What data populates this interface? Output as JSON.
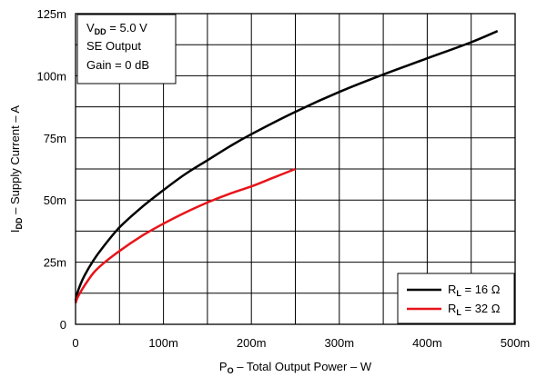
{
  "chart_data": {
    "type": "line",
    "xlabel": {
      "main": "P",
      "sub": "O",
      "rest": " – Total Output Power – W"
    },
    "ylabel": {
      "main": "I",
      "sub": "DD",
      "rest": " – Supply Current – A"
    },
    "xlim": [
      0,
      0.5
    ],
    "ylim": [
      0,
      0.125
    ],
    "x_ticks": [
      0,
      0.1,
      0.2,
      0.3,
      0.4,
      0.5
    ],
    "x_tick_labels": [
      "0",
      "100m",
      "200m",
      "300m",
      "400m",
      "500m"
    ],
    "y_ticks": [
      0,
      0.025,
      0.05,
      0.075,
      0.1,
      0.125
    ],
    "y_tick_labels": [
      "0",
      "25m",
      "50m",
      "75m",
      "100m",
      "125m"
    ],
    "grid": true,
    "grid_x_minor": [
      0.05,
      0.15,
      0.25,
      0.35,
      0.45
    ],
    "grid_y_minor": [
      0.0125,
      0.0375,
      0.0625,
      0.0875,
      0.1125
    ],
    "annotation": {
      "vdd": {
        "main": "V",
        "sub": "DD",
        "rest": " = 5.0 V"
      },
      "lines": [
        "SE Output",
        "Gain = 0 dB"
      ]
    },
    "legend_position": "bottom-right",
    "series": [
      {
        "name": {
          "main": "R",
          "sub": "L",
          "rest": " = 16 Ω"
        },
        "color": "#000000",
        "x": [
          0,
          0.002,
          0.005,
          0.01,
          0.02,
          0.03,
          0.05,
          0.075,
          0.1,
          0.125,
          0.15,
          0.175,
          0.2,
          0.25,
          0.3,
          0.35,
          0.4,
          0.45,
          0.48
        ],
        "y": [
          0.0095,
          0.0125,
          0.0155,
          0.0195,
          0.0255,
          0.0305,
          0.039,
          0.047,
          0.054,
          0.0605,
          0.066,
          0.0715,
          0.0765,
          0.0855,
          0.0935,
          0.1005,
          0.107,
          0.1135,
          0.118
        ]
      },
      {
        "name": {
          "main": "R",
          "sub": "L",
          "rest": " = 32 Ω"
        },
        "color": "#e8141a",
        "x": [
          0,
          0.002,
          0.005,
          0.01,
          0.02,
          0.03,
          0.05,
          0.075,
          0.1,
          0.125,
          0.15,
          0.175,
          0.2,
          0.225,
          0.25
        ],
        "y": [
          0.0085,
          0.0105,
          0.0125,
          0.0155,
          0.0205,
          0.024,
          0.0295,
          0.0355,
          0.0405,
          0.045,
          0.049,
          0.0525,
          0.0555,
          0.059,
          0.0625
        ]
      }
    ]
  }
}
